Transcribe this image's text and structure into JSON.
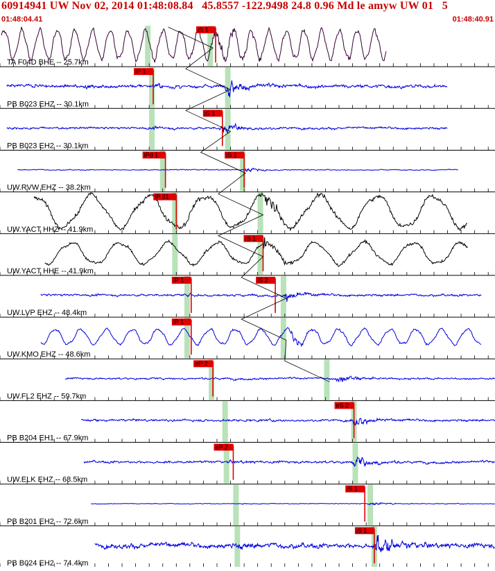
{
  "header": {
    "title": "60914941 UW Nov 02, 2014 01:48:08.84   45.8557 -122.9498 24.8 0.96 Md le amyw UW 01   5",
    "start_time": "01:48:04.41",
    "end_time": "01:48:40.91"
  },
  "colors": {
    "header_text": "#c80000",
    "pick_fill": "#e00000",
    "pick_text": "#000000",
    "pick_line": "#e00000",
    "theory_band": "#b8e2b8",
    "trace_blue": "#0000e0",
    "trace_black": "#000000",
    "trace_purple": "#330033",
    "separator": "#000000"
  },
  "chart_data": {
    "type": "line",
    "x_unit": "seconds after 01:48:04.41",
    "xlim": [
      0,
      36.5
    ],
    "traces": [
      {
        "label": "TA F04D BHE -- 25.7km",
        "color": "#330033",
        "data_start": 0.1,
        "data_end": 28.5,
        "amp": 0.38,
        "style": "long",
        "period": 1.3,
        "p_theo": 10.9,
        "s_theo": 15.5,
        "s_arrival": 15.9,
        "picks": [
          {
            "label": "iS 1",
            "t": 15.9
          }
        ]
      },
      {
        "label": "PB B023 EHZ -- 30.1km",
        "color": "#0000e0",
        "data_start": 0.5,
        "data_end": 33.0,
        "amp": 0.18,
        "style": "noise",
        "p_theo": 11.2,
        "s_theo": 16.8,
        "s_arrival": 16.8,
        "picks": [
          {
            "label": "iP 1",
            "t": 11.3
          }
        ]
      },
      {
        "label": "PB B023 EH2 -- 30.1km",
        "color": "#0000e0",
        "data_start": 0.5,
        "data_end": 33.0,
        "amp": 0.12,
        "style": "noise",
        "p_theo": 11.2,
        "s_theo": 16.8,
        "s_arrival": 16.4,
        "picks": [
          {
            "label": "iS 1",
            "t": 16.4
          }
        ]
      },
      {
        "label": "UW.RVW EHZ -- 38.2km",
        "color": "#0000e0",
        "data_start": 1.3,
        "data_end": 33.8,
        "amp": 0.05,
        "style": "noise",
        "p_theo": 12.0,
        "s_theo": 17.9,
        "s_arrival": 18.0,
        "picks": [
          {
            "label": "iPd 1",
            "t": 12.2
          },
          {
            "label": "iS 1",
            "t": 18.0
          }
        ]
      },
      {
        "label": "UW.YACT HHZ -- 41.9km",
        "color": "#000000",
        "data_start": 2.5,
        "data_end": 34.5,
        "amp": 0.42,
        "style": "long",
        "period": 4.2,
        "p_theo": 12.9,
        "s_theo": 19.2,
        "s_arrival": 19.5,
        "picks": [
          {
            "label": "iP 31",
            "t": 13.0
          }
        ]
      },
      {
        "label": "UW.YACT HHE -- 41.9km",
        "color": "#000000",
        "data_start": 3.3,
        "data_end": 34.5,
        "amp": 0.28,
        "style": "long",
        "period": 3.6,
        "p_theo": 12.9,
        "s_theo": 19.2,
        "s_arrival": 19.4,
        "picks": [
          {
            "label": "iS 1",
            "t": 19.4
          }
        ]
      },
      {
        "label": "UW.LVP EHZ -- 48.4km",
        "color": "#0000e0",
        "data_start": 3.0,
        "data_end": 35.5,
        "amp": 0.12,
        "style": "noise",
        "p_theo": 13.8,
        "s_theo": 20.9,
        "s_arrival": 21.0,
        "picks": [
          {
            "label": "iP 1",
            "t": 14.1
          },
          {
            "label": "iS 2",
            "t": 20.3
          }
        ]
      },
      {
        "label": "UW.KMO EHZ -- 48.6km",
        "color": "#0000e0",
        "data_start": 3.0,
        "data_end": 35.5,
        "amp": 0.2,
        "style": "long",
        "period": 1.9,
        "p_theo": 13.8,
        "s_theo": 20.9,
        "s_arrival": 21.5,
        "picks": [
          {
            "label": "iP 1",
            "t": 14.1
          }
        ]
      },
      {
        "label": "UW.FL2 EHZ -- 59.7km",
        "color": "#0000e0",
        "data_start": 4.8,
        "data_end": 37.0,
        "amp": 0.1,
        "style": "noise",
        "p_theo": 15.6,
        "s_theo": 24.1,
        "s_arrival": 25.0,
        "picks": [
          {
            "label": "eP 2",
            "t": 15.7
          }
        ]
      },
      {
        "label": "PB B204 EH1 -- 67.9km",
        "color": "#0000e0",
        "data_start": 6.0,
        "data_end": 38.2,
        "amp": 0.12,
        "style": "noise",
        "p_theo": 16.6,
        "s_theo": 26.1,
        "s_arrival": 26.1,
        "picks": [
          {
            "label": "eS 2",
            "t": 26.1
          }
        ]
      },
      {
        "label": "UW.ELK EHZ -- 68.5km",
        "color": "#0000e0",
        "data_start": 6.2,
        "data_end": 38.0,
        "amp": 0.13,
        "style": "noise",
        "p_theo": 16.7,
        "s_theo": 26.2,
        "s_arrival": 26.2,
        "picks": [
          {
            "label": "eP 2",
            "t": 17.2
          }
        ]
      },
      {
        "label": "PB B201 EH2 -- 72.6km",
        "color": "#0000e0",
        "data_start": 6.7,
        "data_end": 38.5,
        "amp": 0.04,
        "style": "noise",
        "p_theo": 17.4,
        "s_theo": 27.3,
        "s_arrival": 27.2,
        "picks": [
          {
            "label": "iS 1",
            "t": 26.9
          }
        ]
      },
      {
        "label": "PB B024 EH2 -- 74.4km",
        "color": "#0000e0",
        "data_start": 7.0,
        "data_end": 39.5,
        "amp": 0.27,
        "style": "noise",
        "p_theo": 17.5,
        "s_theo": 27.6,
        "s_arrival": 27.8,
        "picks": [
          {
            "label": "iS 1",
            "t": 27.6
          }
        ]
      }
    ]
  }
}
